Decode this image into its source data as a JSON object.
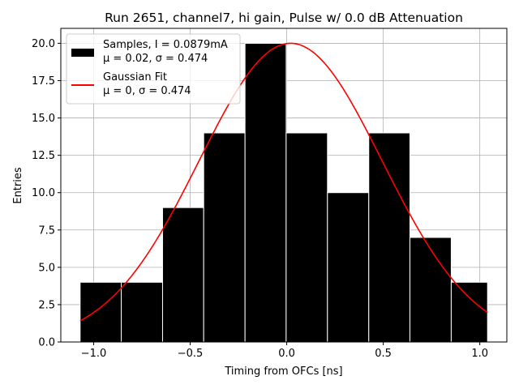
{
  "chart_data": {
    "type": "bar",
    "title": "Run 2651, channel7, hi gain, Pulse w/ 0.0 dB Attenuation",
    "xlabel": "Timing from OFCs [ns]",
    "ylabel": "Entries",
    "xlim": [
      -1.17,
      1.14
    ],
    "ylim": [
      0,
      21
    ],
    "grid": true,
    "xticks": [
      -1.0,
      -0.5,
      0.0,
      0.5,
      1.0
    ],
    "xtick_labels": [
      "−1.0",
      "−0.5",
      "0.0",
      "0.5",
      "1.0"
    ],
    "yticks": [
      0.0,
      2.5,
      5.0,
      7.5,
      10.0,
      12.5,
      15.0,
      17.5,
      20.0
    ],
    "ytick_labels": [
      "0.0",
      "2.5",
      "5.0",
      "7.5",
      "10.0",
      "12.5",
      "15.0",
      "17.5",
      "20.0"
    ],
    "histogram": {
      "name": "Samples, I = 0.0879mA",
      "stats": "μ = 0.02, σ = 0.474",
      "color": "#000000",
      "edgecolor": "#ffffff",
      "bin_edges": [
        -1.07,
        -0.857,
        -0.643,
        -0.43,
        -0.216,
        -0.003,
        0.211,
        0.425,
        0.638,
        0.852,
        1.04
      ],
      "counts": [
        4,
        4,
        9,
        14,
        20,
        14,
        10,
        14,
        7,
        4
      ]
    },
    "fit": {
      "name": "Gaussian Fit",
      "stats": "μ = 0, σ = 0.474",
      "color": "#ff0000",
      "mu": 0.02,
      "sigma": 0.474,
      "amplitude": 20,
      "x_range": [
        -1.07,
        1.04
      ]
    },
    "legend_position": "upper-left"
  }
}
